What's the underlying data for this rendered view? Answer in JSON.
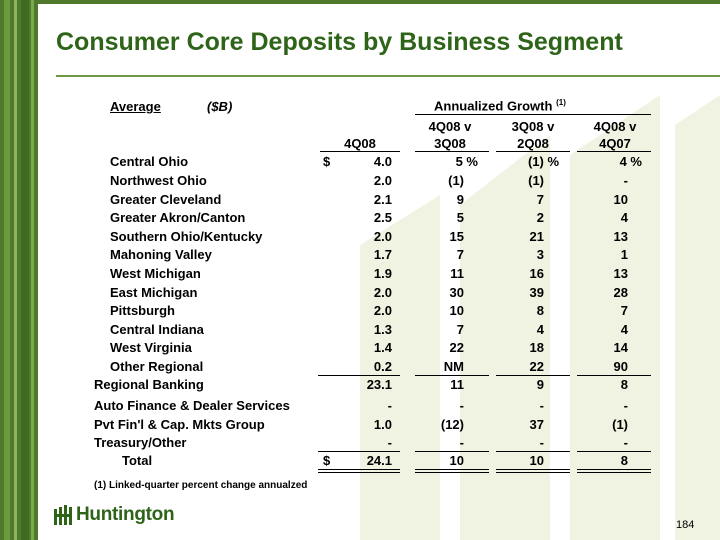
{
  "title": "Consumer Core Deposits by Business Segment",
  "header": {
    "average_label": "Average",
    "units_label": "($B)",
    "growth_group_label": "Annualized Growth",
    "growth_group_note_ref": "(1)",
    "col1_label": "4Q08",
    "col2_line1": "4Q08 v",
    "col2_line2": "3Q08",
    "col3_line1": "3Q08 v",
    "col3_line2": "2Q08",
    "col4_line1": "4Q08 v",
    "col4_line2": "4Q07"
  },
  "rows": [
    {
      "label": "Central Ohio",
      "dollar": "$",
      "value": "4.0",
      "g1": "5  %",
      "g2": "(1) %",
      "g3": "4  %"
    },
    {
      "label": "Northwest Ohio",
      "value": "2.0",
      "g1": "(1)",
      "g2": "(1)",
      "g3": "-"
    },
    {
      "label": "Greater Cleveland",
      "value": "2.1",
      "g1": "9",
      "g2": "7",
      "g3": "10"
    },
    {
      "label": "Greater Akron/Canton",
      "value": "2.5",
      "g1": "5",
      "g2": "2",
      "g3": "4"
    },
    {
      "label": "Southern Ohio/Kentucky",
      "value": "2.0",
      "g1": "15",
      "g2": "21",
      "g3": "13"
    },
    {
      "label": "Mahoning Valley",
      "value": "1.7",
      "g1": "7",
      "g2": "3",
      "g3": "1"
    },
    {
      "label": "West Michigan",
      "value": "1.9",
      "g1": "11",
      "g2": "16",
      "g3": "13"
    },
    {
      "label": "East Michigan",
      "value": "2.0",
      "g1": "30",
      "g2": "39",
      "g3": "28"
    },
    {
      "label": "Pittsburgh",
      "value": "2.0",
      "g1": "10",
      "g2": "8",
      "g3": "7"
    },
    {
      "label": "Central Indiana",
      "value": "1.3",
      "g1": "7",
      "g2": "4",
      "g3": "4"
    },
    {
      "label": "West Virginia",
      "value": "1.4",
      "g1": "22",
      "g2": "18",
      "g3": "14"
    },
    {
      "label": "Other Regional",
      "value": "0.2",
      "g1": "NM",
      "g2": "22",
      "g3": "90"
    }
  ],
  "regional": {
    "label": "Regional Banking",
    "value": "23.1",
    "g1": "11",
    "g2": "9",
    "g3": "8"
  },
  "other_rows": [
    {
      "label": "Auto Finance & Dealer Services",
      "value": "-",
      "g1": "-",
      "g2": "-",
      "g3": "-"
    },
    {
      "label": "Pvt Fin'l & Cap. Mkts Group",
      "value": "1.0",
      "g1": "(12)",
      "g2": "37",
      "g3": "(1)"
    },
    {
      "label": "Treasury/Other",
      "value": "-",
      "g1": "-",
      "g2": "-",
      "g3": "-"
    }
  ],
  "total": {
    "label": "Total",
    "dollar": "$",
    "value": "24.1",
    "g1": "10",
    "g2": "10",
    "g3": "8"
  },
  "footnote": "(1)  Linked-quarter percent change annualzed",
  "logo_text": "Huntington",
  "page_number": "184",
  "colors": {
    "brand_green": "#2e6418",
    "sidebar_green": "#4f7a2c",
    "watermark": "#f1f3e2"
  }
}
